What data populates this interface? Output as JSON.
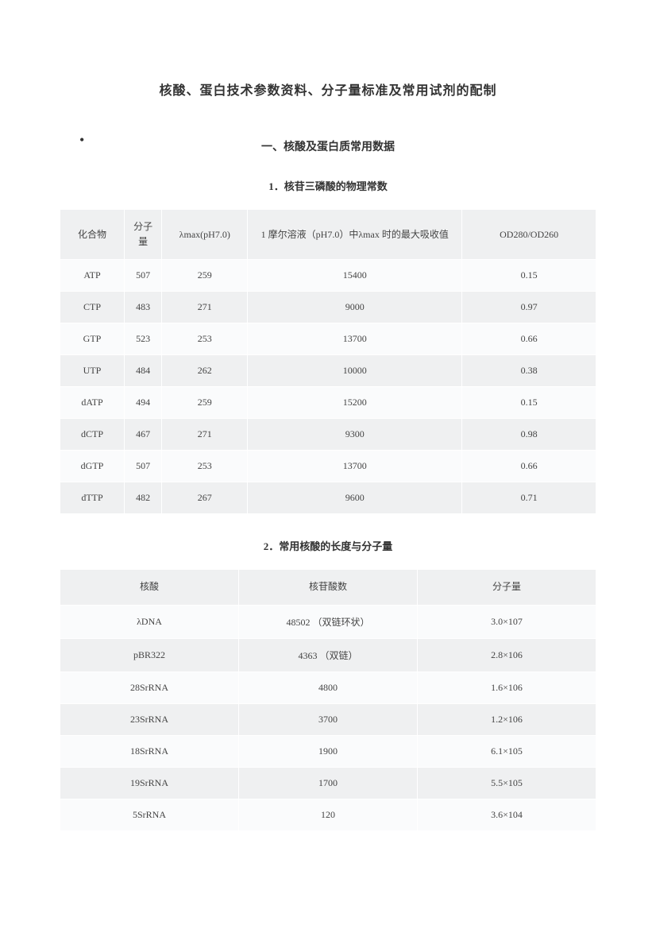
{
  "main_title": "核酸、蛋白技术参数资料、分子量标准及常用试剂的配制",
  "section1_title": "一、核酸及蛋白质常用数据",
  "table1": {
    "title": "1．核苷三磷酸的物理常数",
    "headers": [
      "化合物",
      "分子量",
      "λmax(pH7.0)",
      "1 摩尔溶液（pH7.0）中λmax 时的最大吸收值",
      "OD280/OD260"
    ],
    "rows": [
      [
        "ATP",
        "507",
        "259",
        "15400",
        "0.15"
      ],
      [
        "CTP",
        "483",
        "271",
        "9000",
        "0.97"
      ],
      [
        "GTP",
        "523",
        "253",
        "13700",
        "0.66"
      ],
      [
        "UTP",
        "484",
        "262",
        "10000",
        "0.38"
      ],
      [
        "dATP",
        "494",
        "259",
        "15200",
        "0.15"
      ],
      [
        "dCTP",
        "467",
        "271",
        "9300",
        "0.98"
      ],
      [
        "dGTP",
        "507",
        "253",
        "13700",
        "0.66"
      ],
      [
        "dTTP",
        "482",
        "267",
        "9600",
        "0.71"
      ]
    ]
  },
  "table2": {
    "title": "2．常用核酸的长度与分子量",
    "headers": [
      "核酸",
      "核苷酸数",
      "分子量"
    ],
    "rows": [
      [
        "λDNA",
        "48502 （双链环状）",
        "3.0×107"
      ],
      [
        "pBR322",
        "4363 （双链）",
        "2.8×106"
      ],
      [
        "28SrRNA",
        "4800",
        "1.6×106"
      ],
      [
        "23SrRNA",
        "3700",
        "1.2×106"
      ],
      [
        "18SrRNA",
        "1900",
        "6.1×105"
      ],
      [
        "19SrRNA",
        "1700",
        "5.5×105"
      ],
      [
        "5SrRNA",
        "120",
        "3.6×104"
      ]
    ]
  }
}
